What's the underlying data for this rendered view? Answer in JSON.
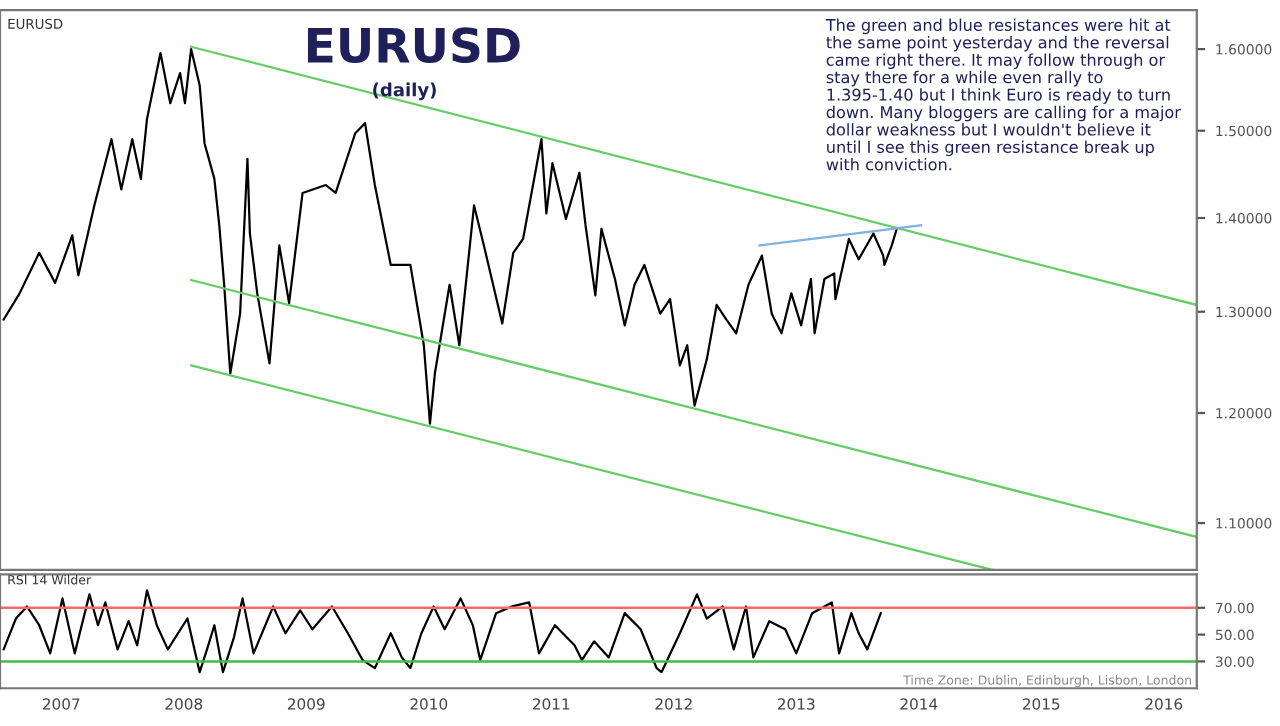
{
  "chart_data": [
    {
      "type": "line",
      "title": "EURUSD",
      "subtitle": "(daily)",
      "annotations": [
        "EURUSD",
        "The green and blue resistances were hit at\nthe same point yesterday and the reversal\ncame right there. It may follow through or\nstay there for a while even rally to\n1.395-1.40 but I think Euro is ready to turn\ndown. Many bloggers are calling for a major\ndollar weakness but I wouldn't believe it\nuntil I see this green resistance break up\nwith conviction."
      ],
      "log": "y",
      "xlim": [
        2007,
        2016.77
      ],
      "ylim": [
        1.06,
        1.65
      ],
      "yticks": [
        {
          "value": 1.1,
          "label": "1.10000"
        },
        {
          "value": 1.2,
          "label": "1.20000"
        },
        {
          "value": 1.3,
          "label": "1.30000"
        },
        {
          "value": 1.4,
          "label": "1.40000"
        },
        {
          "value": 1.5,
          "label": "1.50000"
        },
        {
          "value": 1.6,
          "label": "1.60000"
        }
      ],
      "tick_labels": "y",
      "grid": false,
      "series": [
        {
          "color": "#000000",
          "x": [
            2007.03,
            2007.16,
            2007.32,
            2007.45,
            2007.59,
            2007.64,
            2007.77,
            2007.91,
            2007.99,
            2008.08,
            2008.15,
            2008.2,
            2008.31,
            2008.39,
            2008.47,
            2008.51,
            2008.56,
            2008.63,
            2008.67,
            2008.75,
            2008.79,
            2008.83,
            2008.88,
            2008.96,
            2009.02,
            2009.04,
            2009.1,
            2009.2,
            2009.28,
            2009.36,
            2009.47,
            2009.66,
            2009.74,
            2009.9,
            2009.98,
            2010.06,
            2010.19,
            2010.35,
            2010.46,
            2010.51,
            2010.55,
            2010.67,
            2010.75,
            2010.87,
            2010.95,
            2011.1,
            2011.19,
            2011.27,
            2011.42,
            2011.46,
            2011.51,
            2011.62,
            2011.73,
            2011.78,
            2011.86,
            2011.91,
            2012.02,
            2012.1,
            2012.18,
            2012.26,
            2012.39,
            2012.47,
            2012.55,
            2012.61,
            2012.67,
            2012.77,
            2012.85,
            2012.93,
            2013.01,
            2013.11,
            2013.22,
            2013.3,
            2013.38,
            2013.46,
            2013.54,
            2013.62,
            2013.65,
            2013.73,
            2013.81,
            2013.82,
            2013.93,
            2014.01,
            2014.13,
            2014.21,
            2014.22,
            2014.28,
            2014.32
          ],
          "values": [
            1.292,
            1.319,
            1.362,
            1.33,
            1.381,
            1.338,
            1.414,
            1.49,
            1.432,
            1.49,
            1.444,
            1.514,
            1.595,
            1.533,
            1.57,
            1.533,
            1.6,
            1.555,
            1.485,
            1.444,
            1.392,
            1.328,
            1.238,
            1.298,
            1.467,
            1.383,
            1.319,
            1.248,
            1.37,
            1.309,
            1.428,
            1.437,
            1.428,
            1.497,
            1.509,
            1.437,
            1.349,
            1.349,
            1.266,
            1.19,
            1.238,
            1.328,
            1.266,
            1.414,
            1.37,
            1.288,
            1.362,
            1.377,
            1.49,
            1.405,
            1.462,
            1.399,
            1.451,
            1.392,
            1.317,
            1.388,
            1.334,
            1.286,
            1.328,
            1.349,
            1.298,
            1.313,
            1.246,
            1.266,
            1.207,
            1.252,
            1.307,
            1.292,
            1.278,
            1.328,
            1.359,
            1.298,
            1.278,
            1.319,
            1.286,
            1.334,
            1.278,
            1.334,
            1.34,
            1.313,
            1.377,
            1.355,
            1.383,
            1.359,
            1.349,
            1.37,
            1.388
          ]
        },
        {
          "color": "#66cc66",
          "x": [
            2008.56,
            2016.77
          ],
          "values": [
            1.603,
            1.307
          ]
        },
        {
          "color": "#66cc66",
          "x": [
            2008.56,
            2016.77
          ],
          "values": [
            1.333,
            1.088
          ]
        },
        {
          "color": "#66cc66",
          "x": [
            2008.56,
            2015.1
          ],
          "values": [
            1.246,
            1.06
          ]
        },
        {
          "color": "#7fb2e0",
          "x": [
            2013.2,
            2014.52
          ],
          "values": [
            1.37,
            1.392
          ]
        }
      ]
    },
    {
      "type": "line",
      "title": "RSI 14 Wilder",
      "annotations": [
        "Time Zone: Dublin, Edinburgh, Lisbon, London"
      ],
      "xlim": [
        2007,
        2016.77
      ],
      "ylim": [
        10,
        95
      ],
      "xticks": [
        {
          "value": 2007.5,
          "label": "2007"
        },
        {
          "value": 2008.5,
          "label": "2008"
        },
        {
          "value": 2009.5,
          "label": "2009"
        },
        {
          "value": 2010.5,
          "label": "2010"
        },
        {
          "value": 2011.5,
          "label": "2011"
        },
        {
          "value": 2012.5,
          "label": "2012"
        },
        {
          "value": 2013.5,
          "label": "2013"
        },
        {
          "value": 2014.5,
          "label": "2014"
        },
        {
          "value": 2015.5,
          "label": "2015"
        },
        {
          "value": 2016.5,
          "label": "2016"
        }
      ],
      "yticks": [
        {
          "value": 30,
          "label": "30.00"
        },
        {
          "value": 50,
          "label": "50.00"
        },
        {
          "value": 70,
          "label": "70.00"
        }
      ],
      "grid": false,
      "ref_lines": [
        {
          "axis": "y",
          "value": 70,
          "color": "#ff6666"
        },
        {
          "axis": "y",
          "value": 30,
          "color": "#44bb44"
        }
      ],
      "series": [
        {
          "color": "#000000",
          "x": [
            2007.03,
            2007.13,
            2007.22,
            2007.32,
            2007.41,
            2007.51,
            2007.61,
            2007.73,
            2007.8,
            2007.86,
            2007.96,
            2008.05,
            2008.12,
            2008.2,
            2008.28,
            2008.37,
            2008.53,
            2008.63,
            2008.69,
            2008.75,
            2008.82,
            2008.91,
            2008.98,
            2009.07,
            2009.23,
            2009.33,
            2009.45,
            2009.55,
            2009.71,
            2009.84,
            2009.96,
            2010.06,
            2010.19,
            2010.28,
            2010.35,
            2010.44,
            2010.54,
            2010.63,
            2010.76,
            2010.86,
            2010.92,
            2011.05,
            2011.18,
            2011.32,
            2011.4,
            2011.53,
            2011.69,
            2011.75,
            2011.85,
            2011.97,
            2012.1,
            2012.23,
            2012.36,
            2012.4,
            2012.55,
            2012.69,
            2012.77,
            2012.9,
            2012.99,
            2013.09,
            2013.15,
            2013.28,
            2013.41,
            2013.5,
            2013.63,
            2013.79,
            2013.85,
            2013.95,
            2014.01,
            2014.08,
            2014.19
          ],
          "values": [
            39,
            62,
            71,
            57,
            36,
            77,
            36,
            80,
            57,
            74,
            39,
            60,
            42,
            83,
            57,
            39,
            62,
            22,
            39,
            57,
            22,
            48,
            77,
            36,
            71,
            51,
            68,
            54,
            71,
            51,
            31,
            25,
            51,
            33,
            25,
            51,
            71,
            54,
            77,
            57,
            31,
            66,
            71,
            74,
            36,
            57,
            42,
            31,
            45,
            33,
            66,
            54,
            25,
            22,
            51,
            80,
            62,
            71,
            39,
            71,
            33,
            60,
            54,
            36,
            66,
            74,
            36,
            66,
            51,
            39,
            66
          ]
        }
      ]
    }
  ]
}
